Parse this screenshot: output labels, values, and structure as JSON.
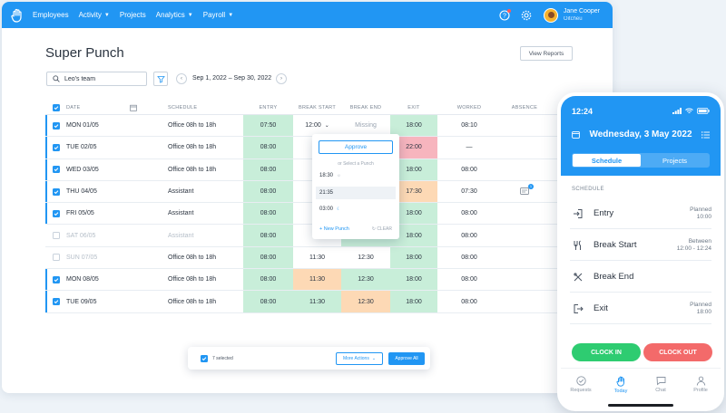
{
  "nav": {
    "items": [
      {
        "label": "Employees",
        "caret": false
      },
      {
        "label": "Activity",
        "caret": true
      },
      {
        "label": "Projects",
        "caret": false
      },
      {
        "label": "Analytics",
        "caret": true
      },
      {
        "label": "Payroll",
        "caret": true
      }
    ],
    "user_name": "Jane Cooper",
    "user_company": "Oitcheu"
  },
  "page": {
    "title": "Super Punch",
    "view_reports": "View Reports",
    "team": "Leo's team",
    "date_range": "Sep 1, 2022 – Sep 30, 2022"
  },
  "table": {
    "headers": {
      "date": "DATE",
      "schedule": "SCHEDULE",
      "entry": "ENTRY",
      "break_start": "BREAK START",
      "break_end": "BREAK END",
      "exit": "EXIT",
      "worked": "WORKED",
      "absence": "ABSENCE"
    },
    "rows": [
      {
        "date": "MON 01/05",
        "schedule": "Office 08h to 18h",
        "entry": "07:50",
        "break_start": "12:00",
        "break_end": "Missing",
        "exit": "18:00",
        "worked": "08:10"
      },
      {
        "date": "TUE 02/05",
        "schedule": "Office 08h to 18h",
        "entry": "08:00",
        "break_start": "",
        "break_end": "",
        "exit": "22:00",
        "worked": "—"
      },
      {
        "date": "WED 03/05",
        "schedule": "Office 08h to 18h",
        "entry": "08:00",
        "break_start": "",
        "break_end": "",
        "exit": "18:00",
        "worked": "08:00"
      },
      {
        "date": "THU 04/05",
        "schedule": "Assistant",
        "entry": "08:00",
        "break_start": "",
        "break_end": "",
        "exit": "17:30",
        "worked": "07:30"
      },
      {
        "date": "FRI 05/05",
        "schedule": "Assistant",
        "entry": "08:00",
        "break_start": "",
        "break_end": "",
        "exit": "18:00",
        "worked": "08:00"
      },
      {
        "date": "SAT 06/05",
        "schedule": "Assistant",
        "entry": "08:00",
        "break_start": "",
        "break_end": "",
        "exit": "18:00",
        "worked": "08:00"
      },
      {
        "date": "SUN 07/05",
        "schedule": "Office 08h to 18h",
        "entry": "08:00",
        "break_start": "11:30",
        "break_end": "12:30",
        "exit": "18:00",
        "worked": "08:00"
      },
      {
        "date": "MON 08/05",
        "schedule": "Office 08h to 18h",
        "entry": "08:00",
        "break_start": "11:30",
        "break_end": "12:30",
        "exit": "18:00",
        "worked": "08:00"
      },
      {
        "date": "TUE 09/05",
        "schedule": "Office 08h to 18h",
        "entry": "08:00",
        "break_start": "11:30",
        "break_end": "12:30",
        "exit": "18:00",
        "worked": "08:00"
      }
    ]
  },
  "popup": {
    "approve": "Approve",
    "or": "or Select a Punch",
    "options": [
      "18:30",
      "21:35",
      "03:00"
    ],
    "new_punch": "+ New Punch",
    "clear": "CLEAR"
  },
  "actionbar": {
    "selected": "7 selected",
    "more": "More Actions",
    "approve_all": "Approve All"
  },
  "phone": {
    "time": "12:24",
    "date": "Wednesday, 3 May 2022",
    "tab_schedule": "Schedule",
    "tab_projects": "Projects",
    "section": "SCHEDULE",
    "items": [
      {
        "label": "Entry",
        "meta1": "Planned",
        "meta2": "10:00"
      },
      {
        "label": "Break Start",
        "meta1": "Between",
        "meta2": "12:00 - 12:24"
      },
      {
        "label": "Break End",
        "meta1": "",
        "meta2": ""
      },
      {
        "label": "Exit",
        "meta1": "Planned",
        "meta2": "18:00"
      }
    ],
    "clock_in": "CLOCK IN",
    "clock_out": "CLOCK OUT",
    "nav": [
      "Requests",
      "Today",
      "Chat",
      "Profile"
    ]
  },
  "colors": {
    "accent": "#2196f3",
    "ok": "#c8eed9",
    "late": "#fdd9b5",
    "error": "#f7b5be"
  }
}
